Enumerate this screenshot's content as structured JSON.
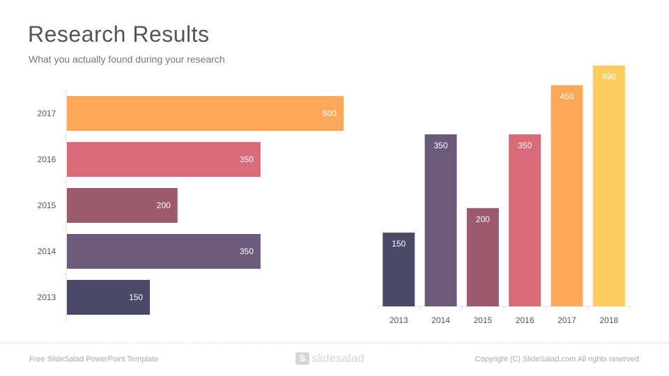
{
  "slide": {
    "title": "Research Results",
    "subtitle": "What you actually found during your research"
  },
  "footer": {
    "left_text": "Free SlideSalad PowerPoint Template",
    "logo_mark": "S",
    "logo_text": "slidesalad",
    "right_text": "Copyright (C) SlideSalad.com  All rights reserved."
  },
  "chart_data": [
    {
      "type": "bar",
      "orientation": "horizontal",
      "categories": [
        "2013",
        "2014",
        "2015",
        "2016",
        "2017"
      ],
      "values": [
        150,
        350,
        200,
        350,
        500
      ],
      "colors": [
        "#4a4a68",
        "#6b5a7a",
        "#9c5a6e",
        "#d96b78",
        "#fca85a"
      ],
      "value_labels": true,
      "xlim": [
        0,
        500
      ],
      "title": "",
      "xlabel": "",
      "ylabel": ""
    },
    {
      "type": "bar",
      "orientation": "vertical",
      "categories": [
        "2013",
        "2014",
        "2015",
        "2016",
        "2017",
        "2018"
      ],
      "values": [
        150,
        350,
        200,
        350,
        450,
        490
      ],
      "colors": [
        "#4a4a68",
        "#6b5a7a",
        "#9c5a6e",
        "#d96b78",
        "#fca85a",
        "#fdcc5e"
      ],
      "value_labels": true,
      "ylim": [
        0,
        500
      ],
      "title": "",
      "xlabel": "",
      "ylabel": ""
    }
  ]
}
